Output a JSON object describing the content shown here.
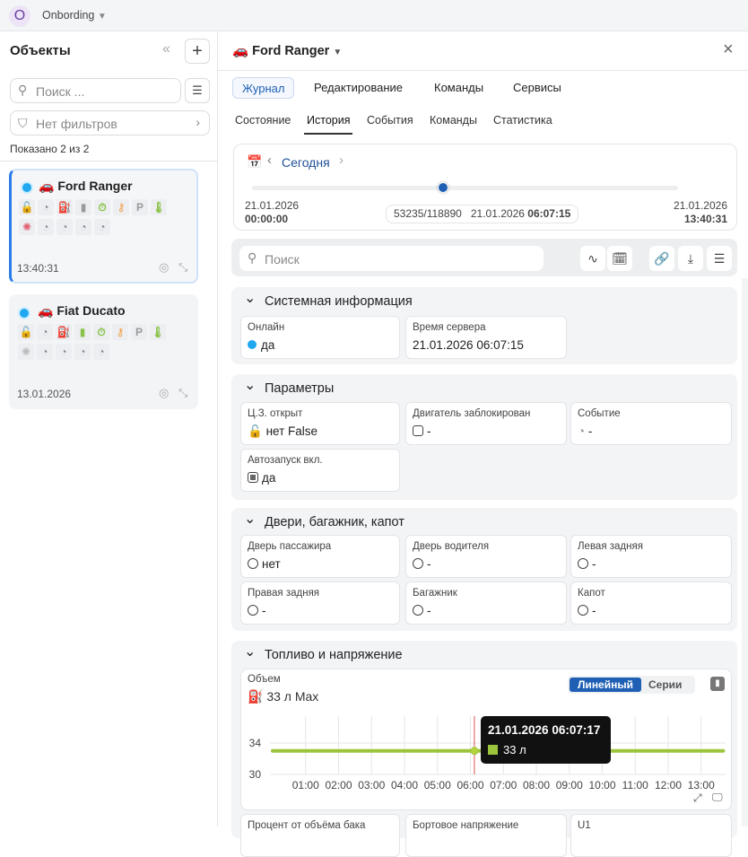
{
  "topbar": {
    "avatar_letter": "O",
    "workspace": "Onbording"
  },
  "left": {
    "title": "Объекты",
    "search_placeholder": "Поиск ...",
    "filter": "Нет фильтров",
    "shown": "Показано 2 из 2",
    "objects": [
      {
        "name": "Ford Ranger",
        "time": "13:40:31",
        "selected": true
      },
      {
        "name": "Fiat Ducato",
        "time": "13.01.2026",
        "selected": false
      }
    ]
  },
  "header": {
    "title": "Ford Ranger"
  },
  "tabs": [
    "Журнал",
    "Редактирование",
    "Команды",
    "Сервисы"
  ],
  "subtabs": [
    "Состояние",
    "История",
    "События",
    "Команды",
    "Статистика"
  ],
  "timeline": {
    "period": "Сегодня",
    "start_date": "21.01.2026",
    "start_time": "00:00:00",
    "end_date": "21.01.2026",
    "end_time": "13:40:31",
    "position": "53235/118890",
    "current_date": "21.01.2026",
    "current_time": "06:07:15",
    "progress": 0.448
  },
  "toolbar": {
    "search_placeholder": "Поиск"
  },
  "sections": {
    "system": {
      "title": "Системная информация",
      "fields": [
        {
          "label": "Онлайн",
          "value": "да"
        },
        {
          "label": "Время сервера",
          "value": "21.01.2026 06:07:15"
        }
      ]
    },
    "params": {
      "title": "Параметры",
      "fields": [
        {
          "label": "Ц.З. открыт",
          "value": "нет False"
        },
        {
          "label": "Двигатель заблокирован",
          "value": "-"
        },
        {
          "label": "Событие",
          "value": "-"
        },
        {
          "label": "Автозапуск вкл.",
          "value": "да"
        }
      ]
    },
    "doors": {
      "title": "Двери, багажник, капот",
      "fields": [
        {
          "label": "Дверь пассажира",
          "value": "нет"
        },
        {
          "label": "Дверь водителя",
          "value": "-"
        },
        {
          "label": "Левая задняя",
          "value": "-"
        },
        {
          "label": "Правая задняя",
          "value": "-"
        },
        {
          "label": "Багажник",
          "value": "-"
        },
        {
          "label": "Капот",
          "value": "-"
        }
      ]
    },
    "fuel": {
      "title": "Топливо и напряжение",
      "chart_label": "Объем",
      "chart_value": "33 л Max",
      "mode_linear": "Линейный",
      "mode_series": "Серии",
      "more_fields": [
        "Процент от объёма бака",
        "Бортовое напряжение",
        "U1"
      ]
    }
  },
  "chart_data": {
    "type": "line",
    "x_ticks": [
      "01:00",
      "02:00",
      "03:00",
      "04:00",
      "05:00",
      "06:00",
      "07:00",
      "08:00",
      "09:00",
      "10:00",
      "11:00",
      "12:00",
      "13:00"
    ],
    "y_ticks": [
      30,
      34
    ],
    "ylim": [
      30,
      35
    ],
    "xlim_hours": [
      0,
      13.67
    ],
    "series": [
      {
        "x": [
          0,
          13.67
        ],
        "y": [
          33,
          33
        ],
        "color": "#9bc53d"
      }
    ],
    "cursor": {
      "time": "21.01.2026 06:07:17",
      "hours": 6.12,
      "value": "33 л"
    },
    "grid": true
  }
}
